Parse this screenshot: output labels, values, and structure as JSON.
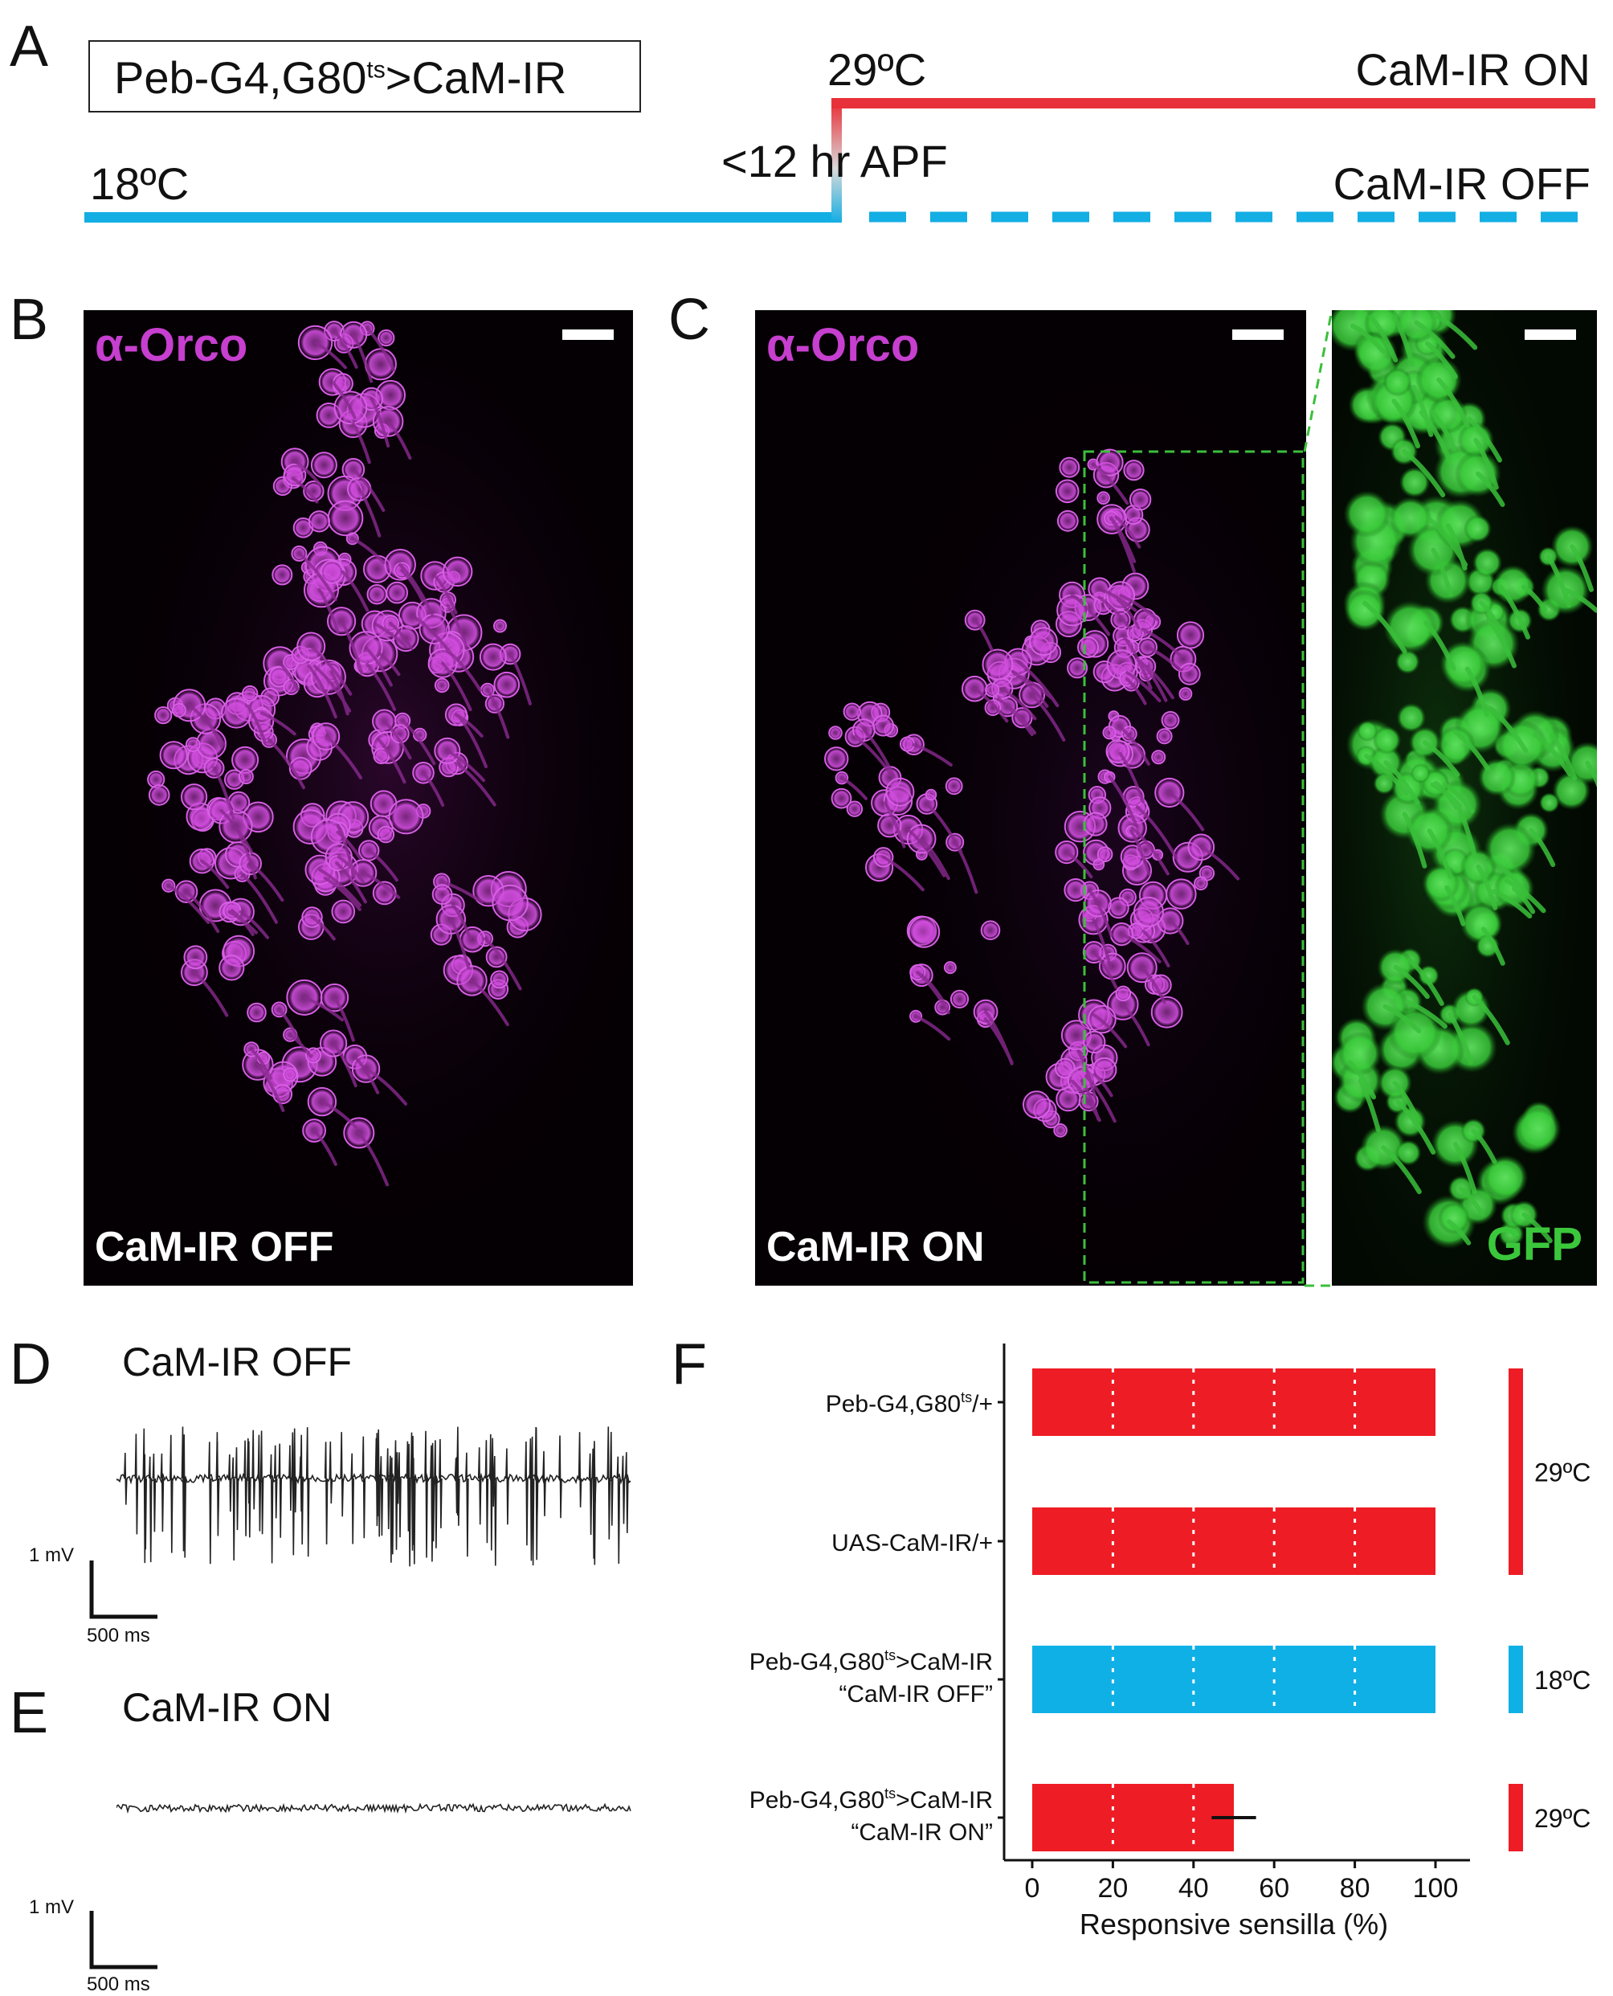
{
  "panels": {
    "a": "A",
    "b": "B",
    "c": "C",
    "d": "D",
    "e": "E",
    "f": "F"
  },
  "panelA": {
    "genotype_pre": "Peb-G4,G80",
    "genotype_sup": "ts",
    "genotype_post": ">CaM-IR",
    "temp_low": "18ºC",
    "temp_high": "29ºC",
    "shift_time": "<12 hr APF",
    "on_label": "CaM-IR ON",
    "off_label": "CaM-IR OFF",
    "colors": {
      "on": "#e8303a",
      "off": "#13aee3"
    }
  },
  "panelB": {
    "stain": "α-Orco",
    "condition": "CaM-IR OFF"
  },
  "panelC": {
    "stain": "α-Orco",
    "condition": "CaM-IR ON",
    "inset_label": "GFP"
  },
  "panelD": {
    "title": "CaM-IR OFF",
    "scale_v": "1 mV",
    "scale_t": "500 ms"
  },
  "panelE": {
    "title": "CaM-IR ON",
    "scale_v": "1 mV",
    "scale_t": "500 ms"
  },
  "chart_data": {
    "type": "bar",
    "orientation": "horizontal",
    "xlabel": "Responsive sensilla (%)",
    "xlim": [
      0,
      100
    ],
    "xticks": [
      "0",
      "20",
      "40",
      "60",
      "80",
      "100"
    ],
    "categories": [
      {
        "line1": "Peb-G4,G80",
        "sup": "ts",
        "line1_post": "/+",
        "line2": "",
        "value": 100,
        "color": "#ee1c25",
        "error": 0
      },
      {
        "line1": "UAS-CaM-IR/+",
        "sup": "",
        "line1_post": "",
        "line2": "",
        "value": 100,
        "color": "#ee1c25",
        "error": 0
      },
      {
        "line1": "Peb-G4,G80",
        "sup": "ts",
        "line1_post": ">CaM-IR",
        "line2": "“CaM-IR OFF”",
        "value": 100,
        "color": "#0fb0e6",
        "error": 0
      },
      {
        "line1": "Peb-G4,G80",
        "sup": "ts",
        "line1_post": ">CaM-IR",
        "line2": "“CaM-IR ON”",
        "value": 50,
        "color": "#ee1c25",
        "error": 5.5
      }
    ],
    "temp_groups": [
      {
        "label": "29ºC",
        "color": "#ee1c25",
        "rows": [
          0,
          1
        ]
      },
      {
        "label": "18ºC",
        "color": "#0fb0e6",
        "rows": [
          2,
          2
        ]
      },
      {
        "label": "29ºC",
        "color": "#ee1c25",
        "rows": [
          3,
          3
        ]
      }
    ],
    "grid": "vertical dotted white lines inside bars"
  }
}
